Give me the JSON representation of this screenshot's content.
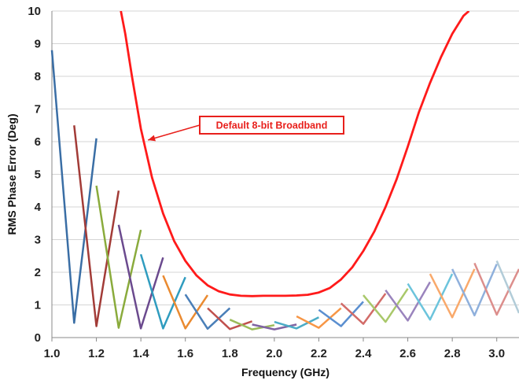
{
  "chart_data": {
    "type": "line",
    "xlabel": "Frequency (GHz)",
    "ylabel": "RMS Phase Error (Deg)",
    "xlim": [
      1.0,
      3.1
    ],
    "ylim": [
      0,
      10
    ],
    "xticks": [
      "1.0",
      "1.2",
      "1.4",
      "1.6",
      "1.8",
      "2.0",
      "2.2",
      "2.4",
      "2.6",
      "2.8",
      "3.0"
    ],
    "yticks": [
      "0",
      "1",
      "2",
      "3",
      "4",
      "5",
      "6",
      "7",
      "8",
      "9",
      "10"
    ],
    "grid": "horizontal",
    "annotation": {
      "text": "Default 8-bit Broadband",
      "points_to": {
        "x": 1.425,
        "y": 6.0
      },
      "color": "#e8201c"
    },
    "broadband_series": {
      "color": "#ff1a1a",
      "x": [
        1.31,
        1.33,
        1.36,
        1.4,
        1.45,
        1.5,
        1.55,
        1.6,
        1.65,
        1.7,
        1.75,
        1.8,
        1.85,
        1.9,
        1.95,
        2.0,
        2.05,
        2.1,
        2.15,
        2.2,
        2.25,
        2.3,
        2.35,
        2.4,
        2.45,
        2.5,
        2.55,
        2.6,
        2.65,
        2.7,
        2.75,
        2.8,
        2.85,
        2.875
      ],
      "y": [
        10.0,
        9.3,
        8.0,
        6.4,
        4.9,
        3.8,
        2.95,
        2.35,
        1.9,
        1.6,
        1.42,
        1.32,
        1.28,
        1.27,
        1.28,
        1.28,
        1.28,
        1.29,
        1.31,
        1.38,
        1.52,
        1.78,
        2.15,
        2.65,
        3.25,
        4.0,
        4.85,
        5.85,
        6.9,
        7.8,
        8.6,
        9.3,
        9.85,
        10.0
      ]
    },
    "band_series": [
      {
        "color": "#3a6ea5",
        "x": [
          1.0,
          1.1,
          1.2
        ],
        "y": [
          8.8,
          0.45,
          6.1
        ]
      },
      {
        "color": "#a23b37",
        "x": [
          1.1,
          1.2,
          1.3
        ],
        "y": [
          6.5,
          0.35,
          4.5
        ]
      },
      {
        "color": "#8aab3c",
        "x": [
          1.2,
          1.3,
          1.4
        ],
        "y": [
          4.65,
          0.3,
          3.3
        ]
      },
      {
        "color": "#6b4a8e",
        "x": [
          1.3,
          1.4,
          1.5
        ],
        "y": [
          3.45,
          0.28,
          2.45
        ]
      },
      {
        "color": "#2f9cbf",
        "x": [
          1.4,
          1.5,
          1.6
        ],
        "y": [
          2.55,
          0.28,
          1.85
        ]
      },
      {
        "color": "#ea8a30",
        "x": [
          1.5,
          1.6,
          1.7
        ],
        "y": [
          1.9,
          0.28,
          1.3
        ]
      },
      {
        "color": "#4a7fb8",
        "x": [
          1.6,
          1.7,
          1.8
        ],
        "y": [
          1.32,
          0.27,
          0.9
        ]
      },
      {
        "color": "#c0504d",
        "x": [
          1.7,
          1.8,
          1.9
        ],
        "y": [
          0.9,
          0.26,
          0.5
        ]
      },
      {
        "color": "#9bbb59",
        "x": [
          1.8,
          1.9,
          2.0
        ],
        "y": [
          0.55,
          0.25,
          0.38
        ]
      },
      {
        "color": "#8064a2",
        "x": [
          1.9,
          2.0,
          2.1
        ],
        "y": [
          0.4,
          0.25,
          0.4
        ]
      },
      {
        "color": "#4bacc6",
        "x": [
          2.0,
          2.1,
          2.2
        ],
        "y": [
          0.48,
          0.28,
          0.62
        ]
      },
      {
        "color": "#f79646",
        "x": [
          2.1,
          2.2,
          2.3
        ],
        "y": [
          0.65,
          0.3,
          0.9
        ]
      },
      {
        "color": "#5b8fd0",
        "x": [
          2.2,
          2.3,
          2.4
        ],
        "y": [
          0.85,
          0.35,
          1.1
        ]
      },
      {
        "color": "#d26b68",
        "x": [
          2.3,
          2.4,
          2.5
        ],
        "y": [
          1.05,
          0.42,
          1.35
        ]
      },
      {
        "color": "#a9c86a",
        "x": [
          2.4,
          2.5,
          2.6
        ],
        "y": [
          1.3,
          0.48,
          1.5
        ]
      },
      {
        "color": "#9a84bd",
        "x": [
          2.5,
          2.6,
          2.7
        ],
        "y": [
          1.45,
          0.52,
          1.7
        ]
      },
      {
        "color": "#6cc4dc",
        "x": [
          2.6,
          2.7,
          2.8
        ],
        "y": [
          1.65,
          0.55,
          1.95
        ]
      },
      {
        "color": "#f9a96b",
        "x": [
          2.7,
          2.8,
          2.9
        ],
        "y": [
          1.95,
          0.62,
          2.1
        ]
      },
      {
        "color": "#8fb0dc",
        "x": [
          2.8,
          2.9,
          3.0
        ],
        "y": [
          2.1,
          0.68,
          2.25
        ]
      },
      {
        "color": "#dc8e8c",
        "x": [
          2.9,
          3.0,
          3.1
        ],
        "y": [
          2.28,
          0.7,
          2.1
        ]
      },
      {
        "color": "#b2ccd8",
        "x": [
          3.0,
          3.1
        ],
        "y": [
          2.35,
          0.75
        ]
      }
    ]
  }
}
